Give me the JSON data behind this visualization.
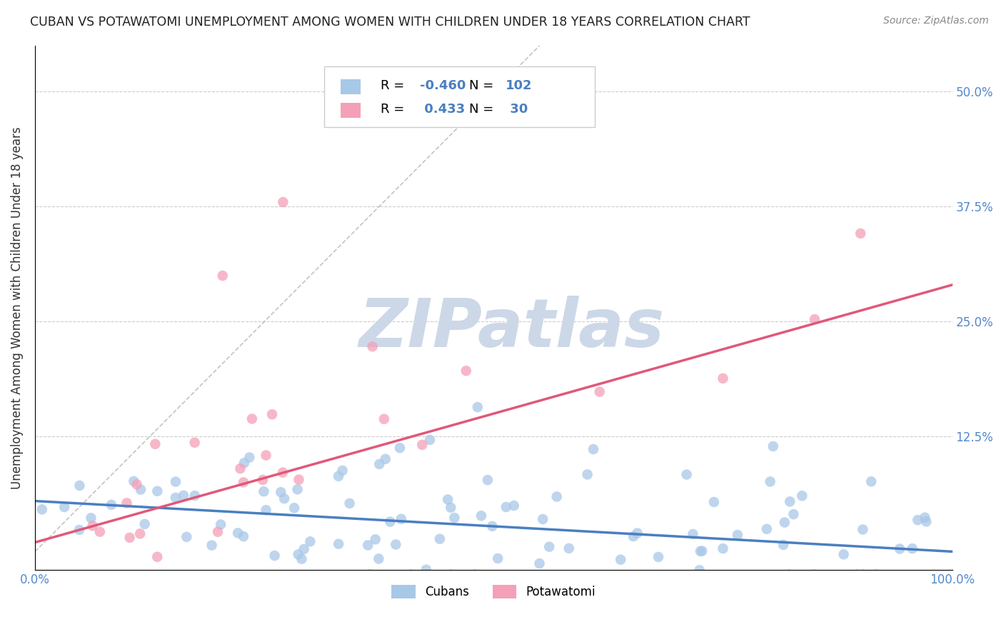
{
  "title": "CUBAN VS POTAWATOMI UNEMPLOYMENT AMONG WOMEN WITH CHILDREN UNDER 18 YEARS CORRELATION CHART",
  "source": "Source: ZipAtlas.com",
  "ylabel": "Unemployment Among Women with Children Under 18 years",
  "xlim": [
    0,
    1.0
  ],
  "ylim": [
    -0.02,
    0.55
  ],
  "yticks": [
    0.0,
    0.125,
    0.25,
    0.375,
    0.5
  ],
  "ytick_labels": [
    "",
    "12.5%",
    "25.0%",
    "37.5%",
    "50.0%"
  ],
  "cuban_R": -0.46,
  "cuban_N": 102,
  "potawatomi_R": 0.433,
  "potawatomi_N": 30,
  "cuban_color": "#a8c8e8",
  "cuban_line_color": "#4a7fc1",
  "potawatomi_color": "#f4a0b8",
  "potawatomi_line_color": "#e05878",
  "watermark_text": "ZIPatlas",
  "watermark_color": "#ccd8e8",
  "background_color": "#ffffff",
  "grid_color": "#cccccc",
  "title_color": "#222222",
  "tick_color": "#5588cc",
  "legend_text_color": "#000000",
  "legend_RN_color": "#4a7fc1",
  "cuban_trend_intercept": 0.055,
  "cuban_trend_slope": -0.055,
  "potawatomi_trend_intercept": 0.01,
  "potawatomi_trend_slope": 0.28
}
